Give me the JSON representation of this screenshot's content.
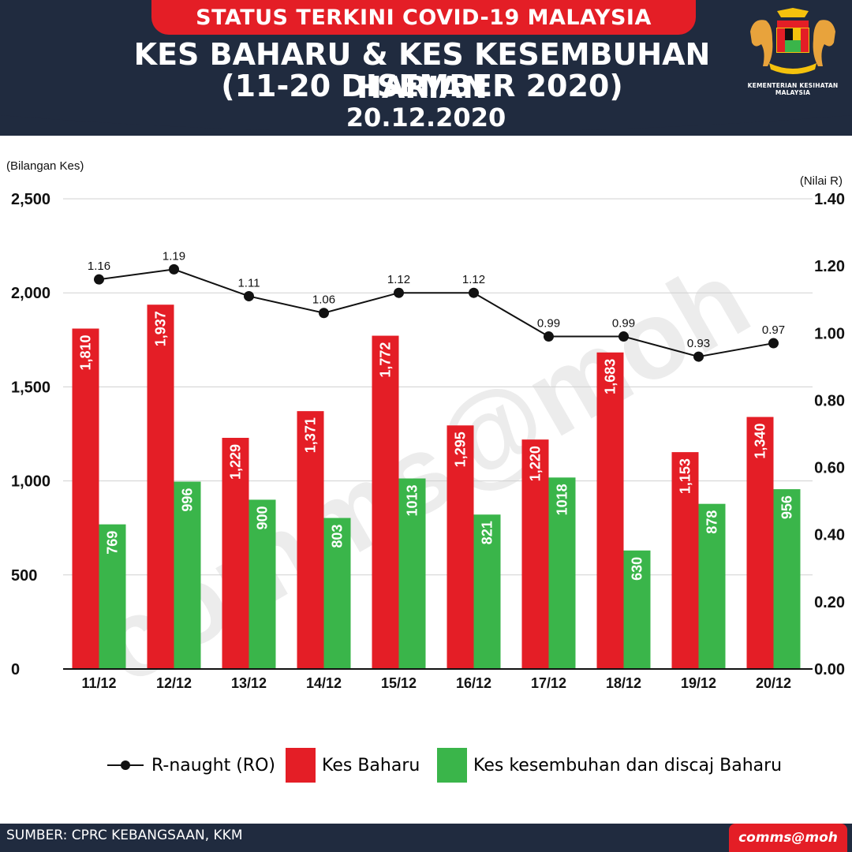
{
  "header": {
    "banner": "STATUS TERKINI COVID-19 MALAYSIA",
    "title_line1": "KES BAHARU & KES KESEMBUHAN HARIAN",
    "title_line2": "(11-20 DISEMBER 2020)",
    "date": "20.12.2020",
    "ministry": "KEMENTERIAN KESIHATAN MALAYSIA",
    "logo_icon": "coat-of-arms-icon"
  },
  "footer": {
    "source": "SUMBER: CPRC KEBANGSAAN, KKM",
    "handle": "comms@moh"
  },
  "legend": {
    "r_label": "R-naught (RO)",
    "new_label": "Kes Baharu",
    "recovered_label": "Kes kesembuhan dan discaj Baharu"
  },
  "colors": {
    "new_cases": "#e41e26",
    "recovered": "#3ab54a",
    "r_line": "#111111",
    "header_bg": "#202b3f"
  },
  "chart_data": {
    "type": "bar",
    "ylabel": "(Bilangan Kes)",
    "y2label": "(Nilai R)",
    "ylim": [
      0,
      2500
    ],
    "y2lim": [
      0,
      1.4
    ],
    "yticks": [
      "0",
      "500",
      "1,000",
      "1,500",
      "2,000",
      "2,500"
    ],
    "y2ticks": [
      "0.00",
      "0.20",
      "0.40",
      "0.60",
      "0.80",
      "1.00",
      "1.20",
      "1.40"
    ],
    "grid": true,
    "legend_position": "bottom",
    "categories": [
      "11/12",
      "12/12",
      "13/12",
      "14/12",
      "15/12",
      "16/12",
      "17/12",
      "18/12",
      "19/12",
      "20/12"
    ],
    "series": [
      {
        "name": "Kes Baharu",
        "type": "bar",
        "values": [
          1810,
          1937,
          1229,
          1371,
          1772,
          1295,
          1220,
          1683,
          1153,
          1340
        ],
        "labels": [
          "1,810",
          "1,937",
          "1,229",
          "1,371",
          "1,772",
          "1,295",
          "1,220",
          "1,683",
          "1,153",
          "1,340"
        ]
      },
      {
        "name": "Kes kesembuhan dan discaj Baharu",
        "type": "bar",
        "values": [
          769,
          996,
          900,
          803,
          1013,
          821,
          1018,
          630,
          878,
          956
        ],
        "labels": [
          "769",
          "996",
          "900",
          "803",
          "1013",
          "821",
          "1018",
          "630",
          "878",
          "956"
        ]
      },
      {
        "name": "R-naught (RO)",
        "type": "line",
        "axis": "right",
        "values": [
          1.16,
          1.19,
          1.11,
          1.06,
          1.12,
          1.12,
          0.99,
          0.99,
          0.93,
          0.97
        ],
        "labels": [
          "1.16",
          "1.19",
          "1.11",
          "1.06",
          "1.12",
          "1.12",
          "0.99",
          "0.99",
          "0.93",
          "0.97"
        ]
      }
    ]
  }
}
